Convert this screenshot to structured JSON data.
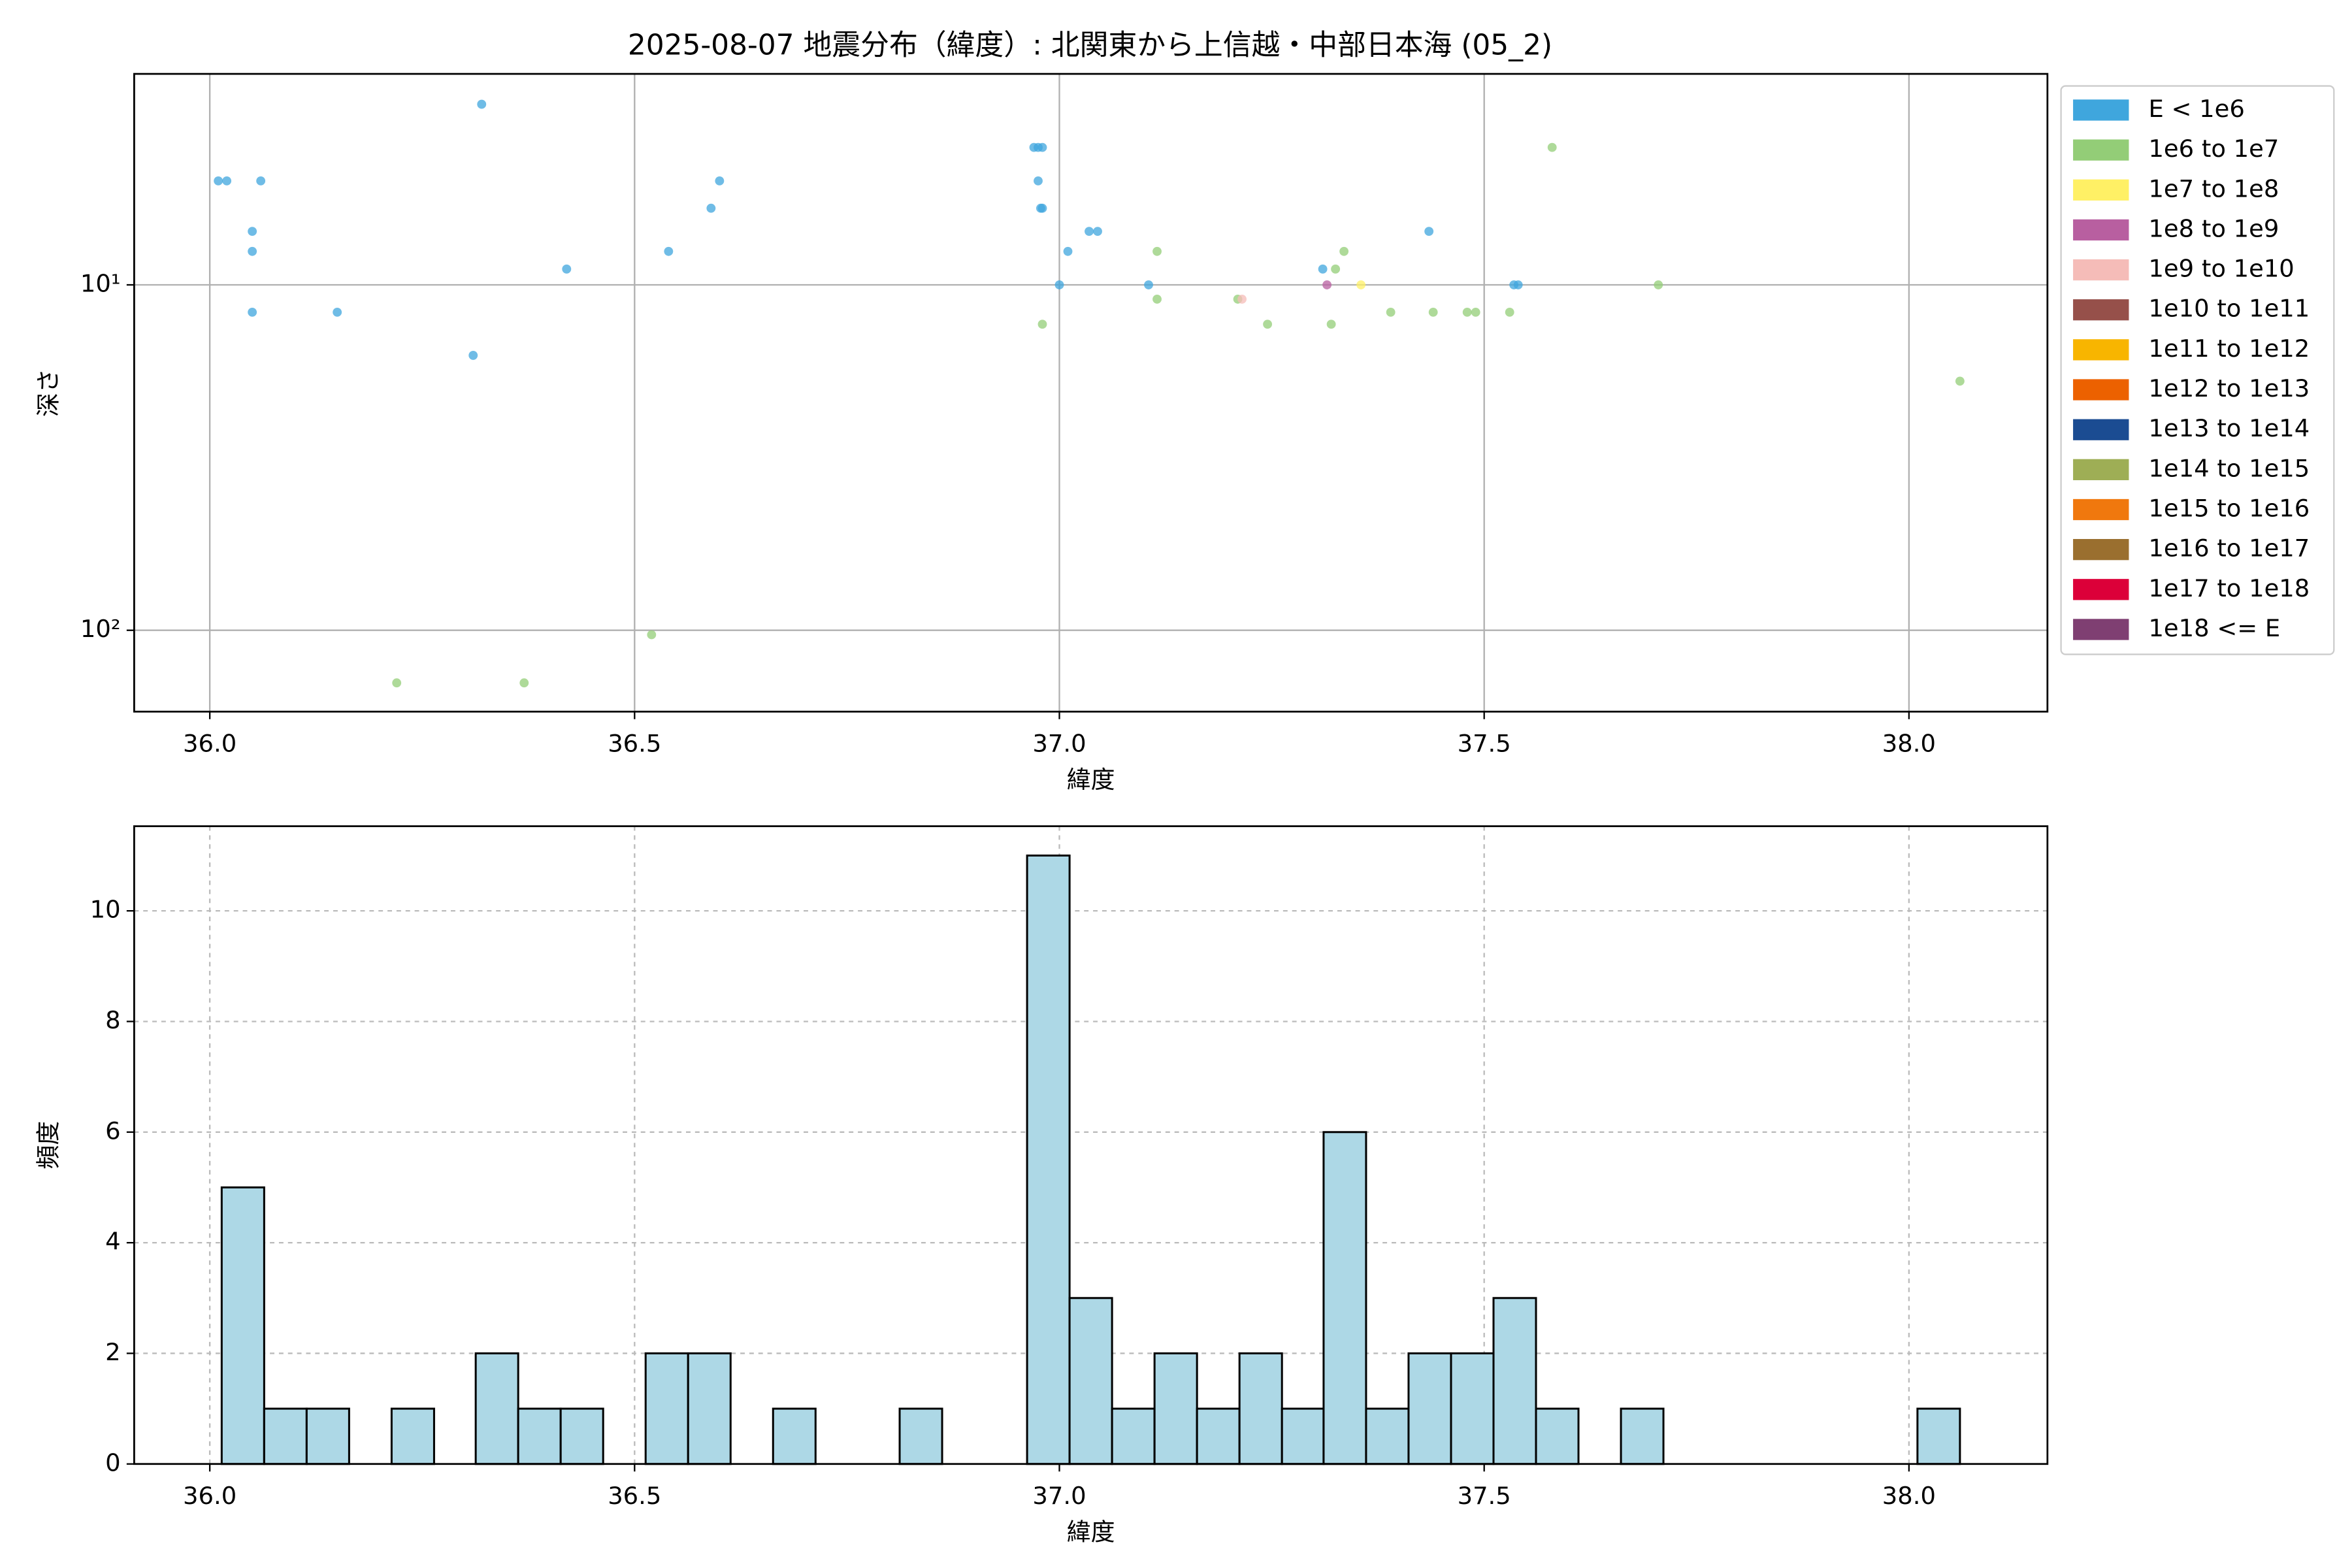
{
  "chart_data": [
    {
      "type": "scatter",
      "title": "2025-08-07 地震分布（緯度）: 北関東から上信越・中部日本海 (05_2)",
      "xlabel": "緯度",
      "ylabel": "深さ",
      "xlim": [
        35.911,
        38.163
      ],
      "xticks": [
        {
          "value": 36,
          "label": "36.0"
        },
        {
          "value": 36.5,
          "label": "36.5"
        },
        {
          "value": 37,
          "label": "37.0"
        },
        {
          "value": 37.5,
          "label": "37.5"
        },
        {
          "value": 38,
          "label": "38.0"
        }
      ],
      "ylim": [
        2.45,
        172
      ],
      "yscale": "log",
      "y_inverted": true,
      "yticks": [
        {
          "value": 10,
          "label": "10¹"
        },
        {
          "value": 100,
          "label": "10²"
        }
      ],
      "grid": true,
      "legend": "outside right",
      "series": [
        {
          "name": "E < 1e6",
          "color": "#3fa6dd",
          "x": [
            36.01,
            36.02,
            36.06,
            36.05,
            36.05,
            36.05,
            36.15,
            36.32,
            36.31,
            36.42,
            36.54,
            36.59,
            36.6,
            36.97,
            36.975,
            36.98,
            36.975,
            36.98,
            36.978,
            37.0,
            37.01,
            37.035,
            37.045,
            37.105,
            37.31,
            37.435,
            37.535,
            37.54
          ],
          "values": [
            5,
            5,
            5,
            7,
            8,
            12,
            12,
            3,
            16,
            9,
            8,
            6,
            5,
            4,
            4,
            4,
            5,
            6,
            6,
            10,
            8,
            7,
            7,
            10,
            9,
            7,
            10,
            10
          ]
        },
        {
          "name": "1e6 to 1e7",
          "color": "#93cd77",
          "x": [
            36.22,
            36.37,
            36.52,
            36.98,
            37.115,
            37.115,
            37.21,
            37.245,
            37.32,
            37.325,
            37.335,
            37.39,
            37.44,
            37.48,
            37.49,
            37.53,
            37.58,
            37.705,
            38.06
          ],
          "values": [
            142,
            142,
            103,
            13,
            8,
            11,
            11,
            13,
            13,
            9,
            8,
            12,
            12,
            12,
            12,
            12,
            4,
            10,
            19
          ]
        },
        {
          "name": "1e7 to 1e8",
          "color": "#fff065",
          "x": [
            37.355
          ],
          "values": [
            10
          ]
        },
        {
          "name": "1e8 to 1e9",
          "color": "#b85fa0",
          "x": [
            37.315
          ],
          "values": [
            10
          ]
        },
        {
          "name": "1e9 to 1e10",
          "color": "#f5bcb8",
          "x": [
            37.215
          ],
          "values": [
            11
          ]
        },
        {
          "name": "1e10 to 1e11",
          "color": "#96504a",
          "x": [],
          "values": []
        },
        {
          "name": "1e11 to 1e12",
          "color": "#f8b500",
          "x": [],
          "values": []
        },
        {
          "name": "1e12 to 1e13",
          "color": "#ec6100",
          "x": [],
          "values": []
        },
        {
          "name": "1e13 to 1e14",
          "color": "#1b4c92",
          "x": [],
          "values": []
        },
        {
          "name": "1e14 to 1e15",
          "color": "#9eae55",
          "x": [],
          "values": []
        },
        {
          "name": "1e15 to 1e16",
          "color": "#f0780e",
          "x": [],
          "values": []
        },
        {
          "name": "1e16 to 1e17",
          "color": "#9a6f2f",
          "x": [],
          "values": []
        },
        {
          "name": "1e17 to 1e18",
          "color": "#dc0039",
          "x": [],
          "values": []
        },
        {
          "name": "1e18 <= E",
          "color": "#7f3f72",
          "x": [],
          "values": []
        }
      ]
    },
    {
      "type": "histogram",
      "xlabel": "緯度",
      "ylabel": "頻度",
      "color": "#add8e6",
      "xlim": [
        35.911,
        38.163
      ],
      "xticks": [
        {
          "value": 36,
          "label": "36.0"
        },
        {
          "value": 36.5,
          "label": "36.5"
        },
        {
          "value": 37,
          "label": "37.0"
        },
        {
          "value": 37.5,
          "label": "37.5"
        },
        {
          "value": 38,
          "label": "38.0"
        }
      ],
      "ylim": [
        0,
        11.53
      ],
      "yticks": [
        0,
        2,
        4,
        6,
        8,
        10
      ],
      "grid": true,
      "bins": [
        36.014,
        36.064,
        36.114,
        36.164,
        36.214,
        36.264,
        36.313,
        36.363,
        36.413,
        36.463,
        36.513,
        36.563,
        36.613,
        36.663,
        36.713,
        36.763,
        36.812,
        36.862,
        36.912,
        36.962,
        37.012,
        37.062,
        37.112,
        37.162,
        37.212,
        37.262,
        37.311,
        37.361,
        37.411,
        37.461,
        37.511,
        37.561,
        37.611,
        37.661,
        37.711,
        37.761,
        37.81,
        37.86,
        37.91,
        37.96,
        38.01,
        38.06
      ],
      "values": [
        5,
        1,
        1,
        0,
        1,
        0,
        2,
        1,
        1,
        0,
        2,
        2,
        0,
        1,
        0,
        0,
        1,
        0,
        0,
        11,
        3,
        1,
        2,
        1,
        2,
        1,
        6,
        1,
        2,
        2,
        3,
        1,
        0,
        1,
        0,
        0,
        0,
        0,
        0,
        0,
        1
      ]
    }
  ]
}
